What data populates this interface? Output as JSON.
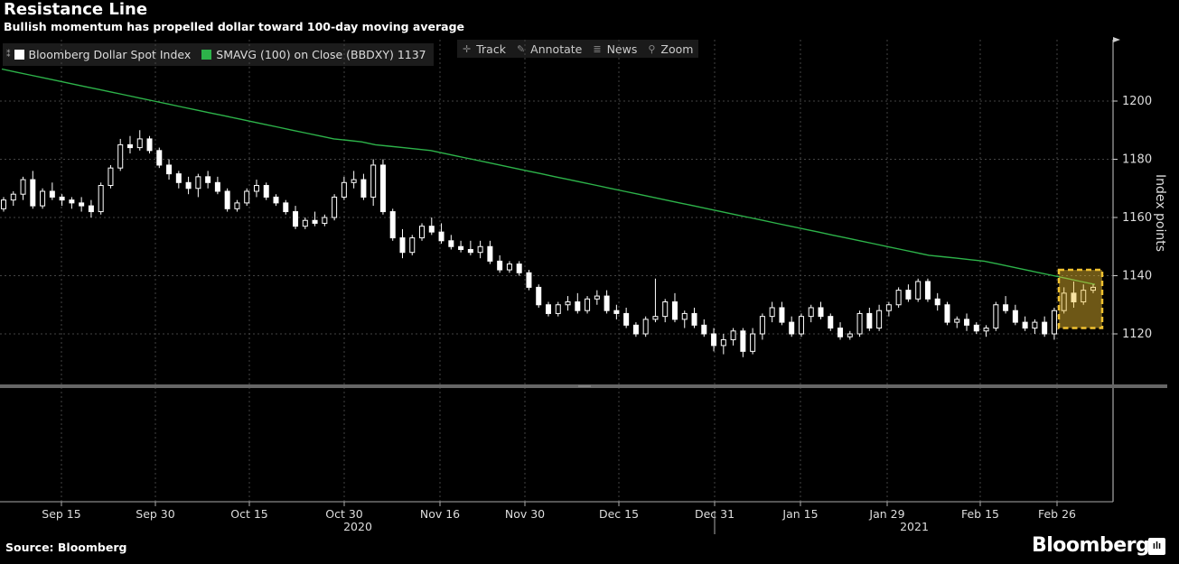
{
  "title": "Resistance Line",
  "subtitle": "Bullish momentum has propelled dollar toward 100-day moving average",
  "legend": {
    "series1": "Bloomberg Dollar Spot Index",
    "series2": "SMAVG (100)  on Close (BBDXY) 1137",
    "series1_color": "#ffffff",
    "series2_color": "#2db34a"
  },
  "toolbar": {
    "track": "Track",
    "annotate": "Annotate",
    "news": "News",
    "zoom": "Zoom"
  },
  "source": "Source: Bloomberg",
  "brand": "Bloomberg",
  "chart_data": {
    "type": "candlestick",
    "ylabel": "Index points",
    "ylim": [
      1100,
      1218
    ],
    "yticks": [
      1120,
      1140,
      1160,
      1180,
      1200
    ],
    "xticks": [
      "Sep 15",
      "Sep 30",
      "Oct 15",
      "Oct 30",
      "Nov 16",
      "Nov 30",
      "Dec 15",
      "Dec 31",
      "Jan 15",
      "Jan 29",
      "Feb 15",
      "Feb 26"
    ],
    "year_labels": [
      "2020",
      "2021"
    ],
    "grid": true,
    "colors": {
      "candle": "#ffffff",
      "sma": "#2db34a",
      "highlight": "#f2c230"
    },
    "candles": [
      [
        1163,
        1167,
        1162,
        1166
      ],
      [
        1166,
        1169,
        1164,
        1168
      ],
      [
        1168,
        1174,
        1166,
        1173
      ],
      [
        1173,
        1176,
        1163,
        1164
      ],
      [
        1164,
        1170,
        1163,
        1169
      ],
      [
        1169,
        1172,
        1166,
        1167
      ],
      [
        1167,
        1168,
        1164,
        1166
      ],
      [
        1166,
        1167,
        1163,
        1165
      ],
      [
        1165,
        1167,
        1162,
        1164
      ],
      [
        1164,
        1166,
        1160,
        1162
      ],
      [
        1162,
        1172,
        1161,
        1171
      ],
      [
        1171,
        1178,
        1170,
        1177
      ],
      [
        1177,
        1187,
        1176,
        1185
      ],
      [
        1185,
        1188,
        1182,
        1184
      ],
      [
        1184,
        1190,
        1183,
        1187
      ],
      [
        1187,
        1188,
        1182,
        1183
      ],
      [
        1183,
        1184,
        1177,
        1178
      ],
      [
        1178,
        1180,
        1173,
        1175
      ],
      [
        1175,
        1176,
        1170,
        1172
      ],
      [
        1172,
        1174,
        1168,
        1170
      ],
      [
        1170,
        1175,
        1167,
        1174
      ],
      [
        1174,
        1176,
        1170,
        1172
      ],
      [
        1172,
        1174,
        1168,
        1169
      ],
      [
        1169,
        1170,
        1162,
        1163
      ],
      [
        1163,
        1166,
        1162,
        1165
      ],
      [
        1165,
        1170,
        1164,
        1169
      ],
      [
        1169,
        1173,
        1167,
        1171
      ],
      [
        1171,
        1172,
        1166,
        1167
      ],
      [
        1167,
        1168,
        1164,
        1165
      ],
      [
        1165,
        1166,
        1161,
        1162
      ],
      [
        1162,
        1164,
        1156,
        1157
      ],
      [
        1157,
        1160,
        1156,
        1159
      ],
      [
        1159,
        1162,
        1157,
        1158
      ],
      [
        1158,
        1161,
        1157,
        1160
      ],
      [
        1160,
        1168,
        1159,
        1167
      ],
      [
        1167,
        1174,
        1166,
        1172
      ],
      [
        1172,
        1176,
        1170,
        1173
      ],
      [
        1173,
        1175,
        1166,
        1167
      ],
      [
        1167,
        1180,
        1164,
        1178
      ],
      [
        1178,
        1180,
        1161,
        1162
      ],
      [
        1162,
        1163,
        1152,
        1153
      ],
      [
        1153,
        1156,
        1146,
        1148
      ],
      [
        1148,
        1154,
        1147,
        1153
      ],
      [
        1153,
        1158,
        1152,
        1157
      ],
      [
        1157,
        1160,
        1154,
        1155
      ],
      [
        1155,
        1158,
        1151,
        1152
      ],
      [
        1152,
        1154,
        1149,
        1150
      ],
      [
        1150,
        1152,
        1148,
        1149
      ],
      [
        1149,
        1152,
        1147,
        1148
      ],
      [
        1148,
        1152,
        1146,
        1150
      ],
      [
        1150,
        1152,
        1144,
        1145
      ],
      [
        1145,
        1147,
        1141,
        1142
      ],
      [
        1142,
        1145,
        1141,
        1144
      ],
      [
        1144,
        1145,
        1140,
        1141
      ],
      [
        1141,
        1142,
        1135,
        1136
      ],
      [
        1136,
        1137,
        1129,
        1130
      ],
      [
        1130,
        1131,
        1126,
        1127
      ],
      [
        1127,
        1131,
        1126,
        1130
      ],
      [
        1130,
        1133,
        1128,
        1131
      ],
      [
        1131,
        1134,
        1127,
        1128
      ],
      [
        1128,
        1133,
        1127,
        1132
      ],
      [
        1132,
        1135,
        1130,
        1133
      ],
      [
        1133,
        1135,
        1127,
        1128
      ],
      [
        1128,
        1130,
        1125,
        1127
      ],
      [
        1127,
        1129,
        1122,
        1123
      ],
      [
        1123,
        1124,
        1119,
        1120
      ],
      [
        1120,
        1126,
        1119,
        1125
      ],
      [
        1125,
        1139,
        1124,
        1126
      ],
      [
        1126,
        1132,
        1124,
        1131
      ],
      [
        1131,
        1134,
        1124,
        1125
      ],
      [
        1125,
        1128,
        1122,
        1127
      ],
      [
        1127,
        1129,
        1122,
        1123
      ],
      [
        1123,
        1125,
        1119,
        1120
      ],
      [
        1120,
        1122,
        1114,
        1116
      ],
      [
        1116,
        1120,
        1113,
        1118
      ],
      [
        1118,
        1122,
        1116,
        1121
      ],
      [
        1121,
        1122,
        1112,
        1114
      ],
      [
        1114,
        1122,
        1113,
        1120
      ],
      [
        1120,
        1127,
        1118,
        1126
      ],
      [
        1126,
        1131,
        1124,
        1129
      ],
      [
        1129,
        1131,
        1123,
        1124
      ],
      [
        1124,
        1126,
        1119,
        1120
      ],
      [
        1120,
        1127,
        1119,
        1126
      ],
      [
        1126,
        1130,
        1124,
        1129
      ],
      [
        1129,
        1131,
        1125,
        1126
      ],
      [
        1126,
        1127,
        1121,
        1122
      ],
      [
        1122,
        1124,
        1118,
        1119
      ],
      [
        1119,
        1121,
        1118,
        1120
      ],
      [
        1120,
        1128,
        1119,
        1127
      ],
      [
        1127,
        1129,
        1121,
        1122
      ],
      [
        1122,
        1130,
        1121,
        1128
      ],
      [
        1128,
        1131,
        1126,
        1130
      ],
      [
        1130,
        1136,
        1129,
        1135
      ],
      [
        1135,
        1137,
        1131,
        1132
      ],
      [
        1132,
        1139,
        1131,
        1138
      ],
      [
        1138,
        1139,
        1131,
        1132
      ],
      [
        1132,
        1134,
        1128,
        1130
      ],
      [
        1130,
        1131,
        1123,
        1124
      ],
      [
        1124,
        1126,
        1122,
        1125
      ],
      [
        1125,
        1127,
        1121,
        1123
      ],
      [
        1123,
        1124,
        1120,
        1121
      ],
      [
        1121,
        1123,
        1119,
        1122
      ],
      [
        1122,
        1131,
        1121,
        1130
      ],
      [
        1130,
        1133,
        1127,
        1128
      ],
      [
        1128,
        1130,
        1123,
        1124
      ],
      [
        1124,
        1126,
        1121,
        1122
      ],
      [
        1122,
        1125,
        1120,
        1124
      ],
      [
        1124,
        1126,
        1119,
        1120
      ],
      [
        1120,
        1129,
        1118,
        1128
      ],
      [
        1128,
        1136,
        1127,
        1134
      ],
      [
        1134,
        1138,
        1129,
        1131
      ],
      [
        1131,
        1137,
        1130,
        1135
      ],
      [
        1135,
        1137,
        1134,
        1136
      ]
    ],
    "sma": [
      1211,
      1210,
      1209,
      1208,
      1207,
      1206,
      1205,
      1204,
      1203,
      1202,
      1201,
      1200,
      1199,
      1198,
      1197,
      1196,
      1195,
      1194,
      1193,
      1192,
      1191,
      1190,
      1189,
      1188,
      1187,
      1186.5,
      1186,
      1185,
      1184.5,
      1184,
      1183.5,
      1183,
      1182,
      1181,
      1180,
      1179,
      1178,
      1177,
      1176,
      1175,
      1174,
      1173,
      1172,
      1171,
      1170,
      1169,
      1168,
      1167,
      1166,
      1165,
      1164,
      1163,
      1162,
      1161,
      1160,
      1159,
      1158,
      1157,
      1156,
      1155,
      1154,
      1153,
      1152,
      1151,
      1150,
      1149,
      1148,
      1147,
      1146.5,
      1146,
      1145.5,
      1145,
      1144,
      1143,
      1142,
      1141,
      1140,
      1139,
      1138,
      1137
    ],
    "highlight": {
      "ymin": 1122,
      "ymax": 1142
    }
  }
}
